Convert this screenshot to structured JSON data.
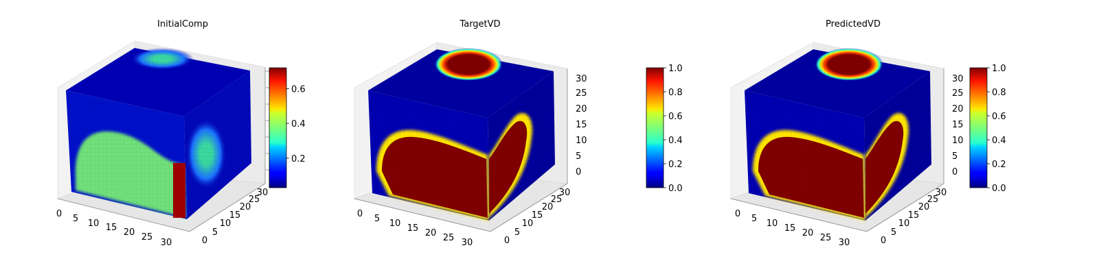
{
  "chart_data": [
    {
      "type": "voxel-3d",
      "title": "InitialComp",
      "axes": {
        "x_ticks": [
          "0",
          "5",
          "10",
          "15",
          "20",
          "25",
          "30"
        ],
        "y_ticks": [
          "0",
          "5",
          "10",
          "15",
          "20",
          "25",
          "30"
        ],
        "z_ticks": [
          "",
          "",
          "",
          "",
          "",
          "",
          ""
        ],
        "x_range": [
          0,
          32
        ],
        "y_range": [
          0,
          32
        ],
        "z_range": [
          0,
          32
        ]
      },
      "colorbar": {
        "min": 0.03,
        "max": 0.72,
        "ticks": [
          0.2,
          0.4,
          0.6
        ],
        "tick_labels": [
          "0.2",
          "0.4",
          "0.6"
        ],
        "colormap": "jet"
      }
    },
    {
      "type": "voxel-3d",
      "title": "TargetVD",
      "axes": {
        "x_ticks": [
          "0",
          "5",
          "10",
          "15",
          "20",
          "25",
          "30"
        ],
        "y_ticks": [
          "0",
          "5",
          "10",
          "15",
          "20",
          "25",
          "30"
        ],
        "z_ticks": [
          "0",
          "5",
          "10",
          "15",
          "20",
          "25",
          "30"
        ],
        "x_range": [
          0,
          32
        ],
        "y_range": [
          0,
          32
        ],
        "z_range": [
          0,
          32
        ]
      },
      "colorbar": {
        "min": 0.0,
        "max": 1.0,
        "ticks": [
          0.0,
          0.2,
          0.4,
          0.6,
          0.8,
          1.0
        ],
        "tick_labels": [
          "0.0",
          "0.2",
          "0.4",
          "0.6",
          "0.8",
          "1.0"
        ],
        "colormap": "jet"
      }
    },
    {
      "type": "voxel-3d",
      "title": "PredictedVD",
      "axes": {
        "x_ticks": [
          "0",
          "5",
          "10",
          "15",
          "20",
          "25",
          "30"
        ],
        "y_ticks": [
          "0",
          "5",
          "10",
          "15",
          "20",
          "25",
          "30"
        ],
        "z_ticks": [
          "0",
          "5",
          "10",
          "15",
          "20",
          "25",
          "30"
        ],
        "x_range": [
          0,
          32
        ],
        "y_range": [
          0,
          32
        ],
        "z_range": [
          0,
          32
        ]
      },
      "colorbar": {
        "min": 0.0,
        "max": 1.0,
        "ticks": [
          0.0,
          0.2,
          0.4,
          0.6,
          0.8,
          1.0
        ],
        "tick_labels": [
          "0.0",
          "0.2",
          "0.4",
          "0.6",
          "0.8",
          "1.0"
        ],
        "colormap": "jet"
      }
    }
  ]
}
